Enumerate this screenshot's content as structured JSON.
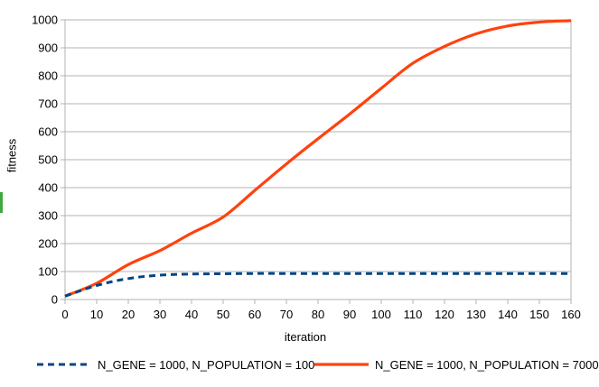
{
  "chart": {
    "background": "#ffffff",
    "grid_color": "#b3b3b3",
    "text_color": "#000000"
  },
  "artifacts": {
    "green_bar_color": "#3fa73f"
  },
  "chart_data": {
    "type": "line",
    "title": "",
    "xlabel": "iteration",
    "ylabel": "fitness",
    "xlim": [
      0,
      160
    ],
    "ylim": [
      0,
      1000
    ],
    "x_ticks": [
      0,
      10,
      20,
      30,
      40,
      50,
      60,
      70,
      80,
      90,
      100,
      110,
      120,
      130,
      140,
      150,
      160
    ],
    "y_ticks": [
      0,
      100,
      200,
      300,
      400,
      500,
      600,
      700,
      800,
      900,
      1000
    ],
    "grid": "horizontal",
    "legend_position": "bottom",
    "x": [
      0,
      10,
      20,
      30,
      40,
      50,
      60,
      70,
      80,
      90,
      100,
      110,
      120,
      130,
      140,
      150,
      160
    ],
    "series": [
      {
        "name": "N_GENE = 1000, N_POPULATION = 100",
        "color": "#004586",
        "style": "dashed",
        "values": [
          12,
          50,
          75,
          87,
          91,
          92,
          93,
          93,
          93,
          93,
          93,
          93,
          93,
          93,
          93,
          93,
          93
        ]
      },
      {
        "name": "N_GENE = 1000, N_POPULATION = 7000",
        "color": "#FF420E",
        "style": "solid",
        "values": [
          12,
          58,
          125,
          175,
          237,
          295,
          390,
          485,
          575,
          663,
          755,
          845,
          905,
          950,
          978,
          992,
          997
        ]
      }
    ]
  }
}
